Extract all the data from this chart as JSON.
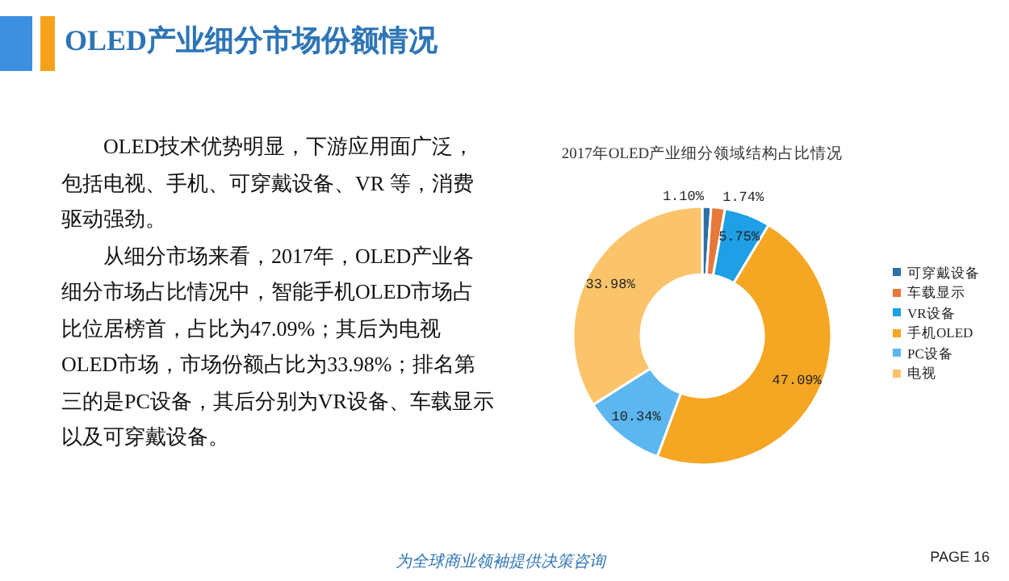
{
  "chart_data": [
    {
      "type": "other",
      "title": "OLED产业细分市场份额情况",
      "annotations": [
        "OLED技术优势明显，下游应用面广泛，包括电视、手机、可穿戴设备、VR 等，消费驱动强劲。",
        "从细分市场来看，2017年，OLED产业各细分市场占比情况中，智能手机OLED市场占比位居榜首，占比为47.09%；其后为电视OLED市场，市场份额占比为33.98%；排名第三的是PC设备，其后分别为VR设备、车载显示以及可穿戴设备。",
        "为全球商业领袖提供决策咨询",
        "PAGE 16"
      ]
    },
    {
      "type": "donut",
      "title": "2017年OLED产业细分领域结构占比情况",
      "categories": [
        "可穿戴设备",
        "车载显示",
        "VR设备",
        "手机OLED",
        "PC设备",
        "电视"
      ],
      "values": [
        1.1,
        1.74,
        5.75,
        47.09,
        10.34,
        33.98
      ],
      "colors": [
        "#2e6fa8",
        "#e8773a",
        "#1e9fe6",
        "#f5a623",
        "#5cb6ef",
        "#fbc46b"
      ],
      "value_labels": [
        "1.10%",
        "1.74%",
        "5.75%",
        "47.09%",
        "10.34%",
        "33.98%"
      ],
      "legend": "right"
    }
  ]
}
